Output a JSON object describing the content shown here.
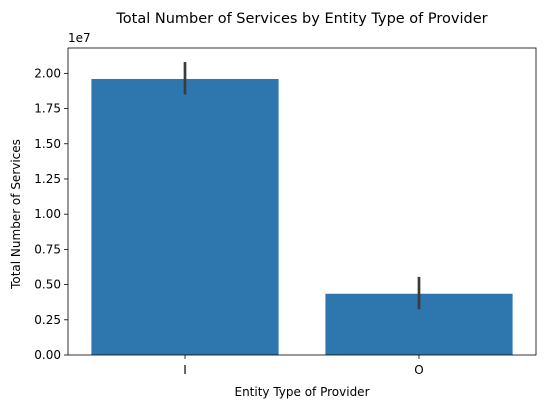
{
  "chart_data": {
    "type": "bar",
    "title": "Total Number of Services by Entity Type of Provider",
    "xlabel": "Entity Type of Provider",
    "ylabel": "Total Number of Services",
    "y_offset_label": "1e7",
    "categories": [
      "I",
      "O"
    ],
    "values": [
      19600000,
      4350000
    ],
    "error_bars": [
      {
        "low": 18500000,
        "high": 20800000
      },
      {
        "low": 3250000,
        "high": 5550000
      }
    ],
    "ylim": [
      0,
      21800000
    ],
    "y_ticks": [
      0,
      2500000,
      5000000,
      7500000,
      10000000,
      12500000,
      15000000,
      17500000,
      20000000
    ],
    "y_tick_labels": [
      "0.00",
      "0.25",
      "0.50",
      "0.75",
      "1.00",
      "1.25",
      "1.50",
      "1.75",
      "2.00"
    ],
    "grid": false,
    "legend": "none",
    "colors": {
      "bar": "#2e77ae",
      "error_bar": "#3b3b3b",
      "axis": "#000000"
    }
  }
}
